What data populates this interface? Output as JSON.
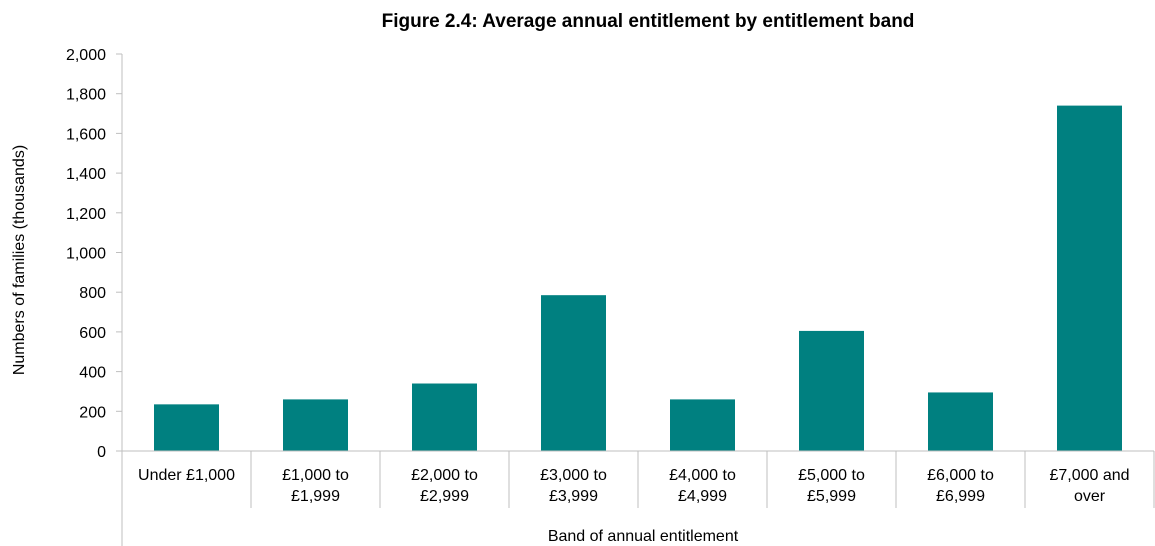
{
  "chart_data": {
    "type": "bar",
    "title": "Figure 2.4:  Average annual entitlement by entitlement band",
    "xlabel": "Band of annual entitlement",
    "ylabel": "Numbers of families (thousands)",
    "categories": [
      [
        "Under £1,000"
      ],
      [
        "£1,000 to",
        "£1,999"
      ],
      [
        "£2,000 to",
        "£2,999"
      ],
      [
        "£3,000 to",
        "£3,999"
      ],
      [
        "£4,000 to",
        "£4,999"
      ],
      [
        "£5,000 to",
        "£5,999"
      ],
      [
        "£6,000 to",
        "£6,999"
      ],
      [
        "£7,000 and",
        "over"
      ]
    ],
    "values": [
      235,
      260,
      340,
      785,
      260,
      605,
      295,
      1740
    ],
    "ylim": [
      0,
      2000
    ],
    "yticks": [
      0,
      200,
      400,
      600,
      800,
      1000,
      1200,
      1400,
      1600,
      1800,
      2000
    ],
    "ytick_labels": [
      "0",
      "200",
      "400",
      "600",
      "800",
      "1,000",
      "1,200",
      "1,400",
      "1,600",
      "1,800",
      "2,000"
    ],
    "bar_color": "#008080",
    "grid": false,
    "legend": "none"
  }
}
